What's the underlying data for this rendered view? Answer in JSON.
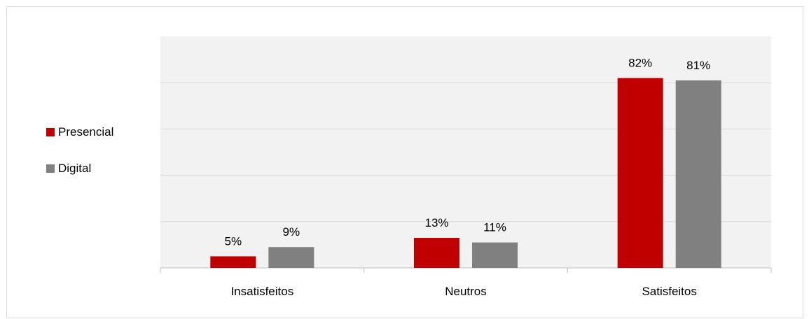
{
  "chart_data": {
    "type": "bar",
    "categories": [
      "Insatisfeitos",
      "Neutros",
      "Satisfeitos"
    ],
    "series": [
      {
        "name": "Presencial",
        "values": [
          5,
          13,
          82
        ],
        "labels": [
          "5%",
          "13%",
          "82%"
        ],
        "color": "#c00000"
      },
      {
        "name": "Digital",
        "values": [
          9,
          11,
          81
        ],
        "labels": [
          "9%",
          "11%",
          "81%"
        ],
        "color": "#808080"
      }
    ],
    "ylim": [
      0,
      100
    ],
    "gridlines": true,
    "legend_position": "left",
    "plot_background": "#f2f2f2"
  }
}
